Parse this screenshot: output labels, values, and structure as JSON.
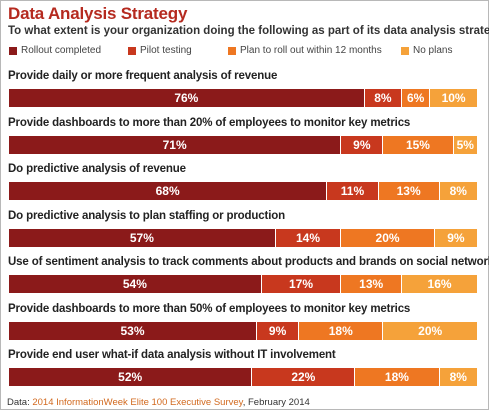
{
  "title": "Data Analysis Strategy",
  "subtitle": "To what extent is your organization doing the following as part of its data analysis strategy?",
  "chart_data": {
    "type": "bar",
    "orientation": "horizontal-stacked",
    "categories": [
      "Provide daily or more frequent analysis of revenue",
      "Provide dashboards to more than 20% of employees to monitor key metrics",
      "Do predictive analysis of revenue",
      "Do predictive analysis to plan staffing or production",
      "Use of sentiment analysis to track comments about products and brands on social networks",
      "Provide dashboards to more than 50% of employees to monitor key metrics",
      "Provide end user what-if data analysis without IT involvement"
    ],
    "series": [
      {
        "name": "Rollout completed",
        "color": "#8b1a1a",
        "values": [
          76,
          71,
          68,
          57,
          54,
          53,
          52
        ]
      },
      {
        "name": "Pilot testing",
        "color": "#c8381e",
        "values": [
          8,
          9,
          11,
          14,
          17,
          9,
          22
        ]
      },
      {
        "name": "Plan to roll out within 12 months",
        "color": "#ee7722",
        "values": [
          6,
          15,
          13,
          20,
          13,
          18,
          18
        ]
      },
      {
        "name": "No plans",
        "color": "#f5a23a",
        "values": [
          10,
          5,
          8,
          9,
          16,
          20,
          8
        ]
      }
    ],
    "value_suffix": "%",
    "legend_position": "top"
  },
  "source": {
    "prefix": "Data: ",
    "name": "2014 InformationWeek Elite 100 Executive Survey",
    "suffix": ", February 2014"
  }
}
